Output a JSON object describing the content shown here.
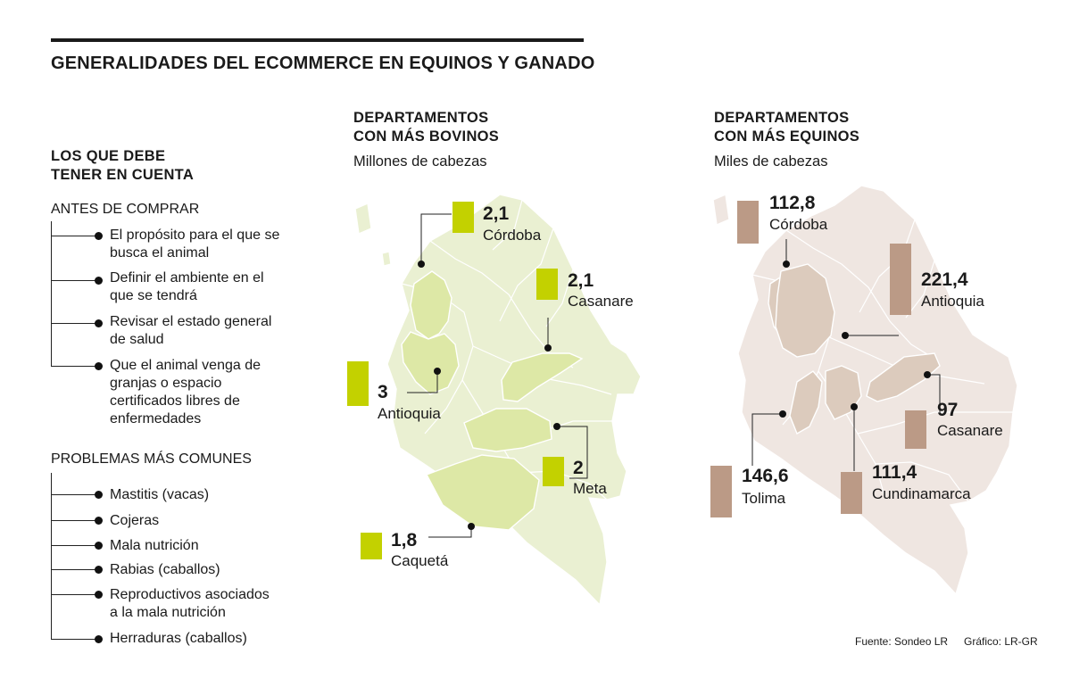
{
  "title": "GENERALIDADES DEL ECOMMERCE EN EQUINOS Y GANADO",
  "checklist": {
    "heading_line1": "LOS QUE DEBE",
    "heading_line2": "TENER EN CUENTA",
    "before_buying": {
      "label": "ANTES DE COMPRAR",
      "items": [
        {
          "l1": "El propósito para el que se",
          "l2": "busca el animal"
        },
        {
          "l1": "Definir el ambiente en el",
          "l2": "que se tendrá"
        },
        {
          "l1": "Revisar el estado general",
          "l2": "de salud"
        },
        {
          "l1": "Que el animal venga de",
          "l2": "granjas o espacio",
          "l3": "certificados libres de",
          "l4": "enfermedades"
        }
      ]
    },
    "common_problems": {
      "label": "PROBLEMAS MÁS COMUNES",
      "items": [
        {
          "l1": "Mastitis (vacas)"
        },
        {
          "l1": "Cojeras"
        },
        {
          "l1": "Mala nutrición"
        },
        {
          "l1": "Rabias (caballos)"
        },
        {
          "l1": "Reproductivos asociados",
          "l2": "a la mala nutrición"
        },
        {
          "l1": "Herraduras (caballos)"
        }
      ]
    }
  },
  "bovinos": {
    "heading_line1": "DEPARTAMENTOS",
    "heading_line2": "CON MÁS BOVINOS",
    "unit": "Millones de cabezas",
    "map_color": "#eaf0d2",
    "highlight_color": "#dde8a6",
    "bar_color": "#c3d100",
    "departments": [
      {
        "value": "2,1",
        "name": "Córdoba",
        "num": 2.1
      },
      {
        "value": "2,1",
        "name": "Casanare",
        "num": 2.1
      },
      {
        "value": "3",
        "name": "Antioquia",
        "num": 3
      },
      {
        "value": "2",
        "name": "Meta",
        "num": 2
      },
      {
        "value": "1,8",
        "name": "Caquetá",
        "num": 1.8
      }
    ]
  },
  "equinos": {
    "heading_line1": "DEPARTAMENTOS",
    "heading_line2": "CON MÁS EQUINOS",
    "unit": "Miles de cabezas",
    "map_color": "#efe6e1",
    "highlight_color": "#dccbbd",
    "bar_color": "#bb9a86",
    "departments": [
      {
        "value": "112,8",
        "name": "Córdoba",
        "num": 112.8
      },
      {
        "value": "221,4",
        "name": "Antioquia",
        "num": 221.4
      },
      {
        "value": "97",
        "name": "Casanare",
        "num": 97
      },
      {
        "value": "146,6",
        "name": "Tolima",
        "num": 146.6
      },
      {
        "value": "111,4",
        "name": "Cundinamarca",
        "num": 111.4
      }
    ]
  },
  "footer": {
    "source": "Fuente: Sondeo LR",
    "credit": "Gráfico: LR-GR"
  }
}
